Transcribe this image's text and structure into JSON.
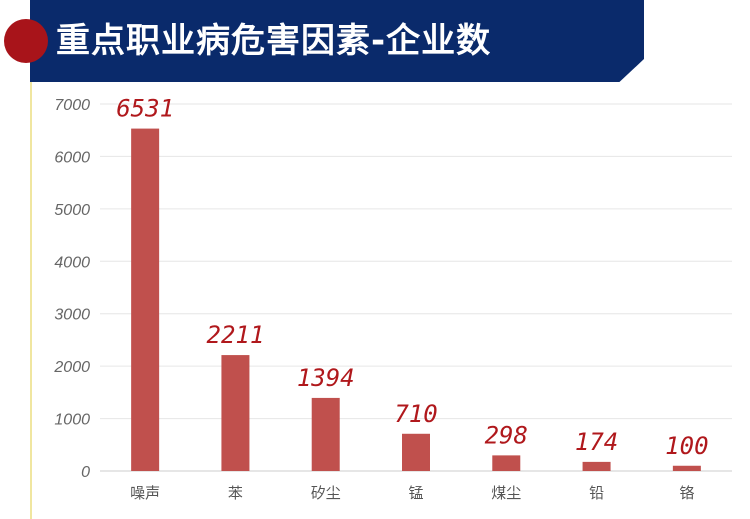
{
  "title": "重点职业病危害因素-企业数",
  "colors": {
    "banner": "#0a2a6b",
    "dot": "#a8141a",
    "bar": "#c0504d",
    "label": "#b0181c",
    "grid": "#e6e6e6"
  },
  "chart_data": {
    "type": "bar",
    "title": "重点职业病危害因素-企业数",
    "categories": [
      "噪声",
      "苯",
      "矽尘",
      "锰",
      "煤尘",
      "铅",
      "铬"
    ],
    "values": [
      6531,
      2211,
      1394,
      710,
      298,
      174,
      100
    ],
    "data_labels": [
      "6531",
      "2211",
      "1394",
      "710",
      "298",
      "174",
      "100"
    ],
    "xlabel": "",
    "ylabel": "",
    "ylim": [
      0,
      7000
    ],
    "yticks": [
      0,
      1000,
      2000,
      3000,
      4000,
      5000,
      6000,
      7000
    ],
    "ytick_labels": [
      "0",
      "1000",
      "2000",
      "3000",
      "4000",
      "5000",
      "6000",
      "7000"
    ],
    "grid": true,
    "legend": "none"
  }
}
